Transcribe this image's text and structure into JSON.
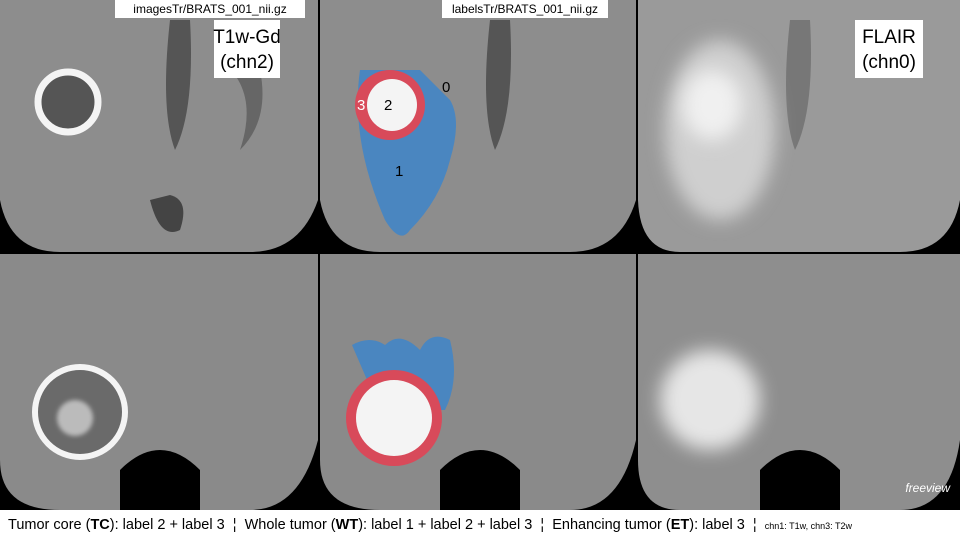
{
  "panels": {
    "top_left_header": "imagesTr/BRATS_001_nii.gz",
    "top_middle_header": "labelsTr/BRATS_001_nii.gz",
    "left_label": {
      "line1": "T1w-Gd",
      "line2": "(chn2)"
    },
    "right_label": {
      "line1": "FLAIR",
      "line2": "(chn0)"
    },
    "segment_labels": [
      "0",
      "1",
      "2",
      "3"
    ],
    "watermark": "freeview"
  },
  "caption": {
    "separator": "¦",
    "items": [
      {
        "prefix": "Tumor core (",
        "abbr": "TC",
        "suffix": "): label 2 + label 3"
      },
      {
        "prefix": "Whole tumor (",
        "abbr": "WT",
        "suffix": "): label 1 + label 2 + label 3"
      },
      {
        "prefix": "Enhancing tumor (",
        "abbr": "ET",
        "suffix": "): label 3"
      }
    ],
    "note": "chn1: T1w,  chn3: T2w"
  }
}
